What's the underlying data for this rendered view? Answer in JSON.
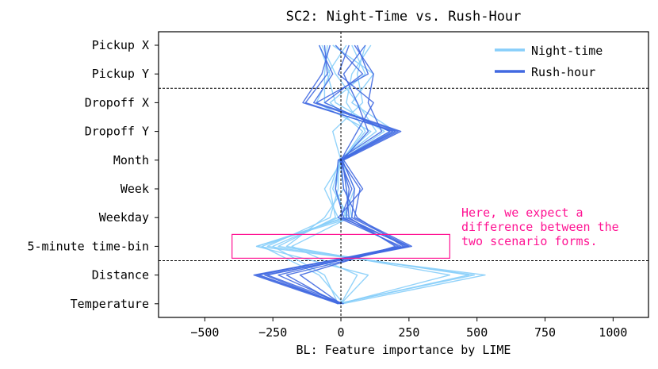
{
  "chart_data": {
    "type": "line",
    "title": "SC2: Night-Time vs. Rush-Hour",
    "xlabel": "BL: Feature importance by LIME",
    "ylabel": "",
    "xlim": [
      -670,
      1130
    ],
    "xticks": [
      -500,
      -250,
      0,
      250,
      500,
      750,
      1000
    ],
    "xtick_labels": [
      "−500",
      "−250",
      "0",
      "250",
      "500",
      "750",
      "1000"
    ],
    "categories": [
      "Pickup X",
      "Pickup Y",
      "Dropoff X",
      "Dropoff Y",
      "Month",
      "Week",
      "Weekday",
      "5-minute time-bin",
      "Distance",
      "Temperature"
    ],
    "grid": false,
    "legend_position": "top-right",
    "dashed_vline_x": 0,
    "dashed_hlines_between": [
      [
        "Pickup Y",
        "Dropoff X"
      ],
      [
        "5-minute time-bin",
        "Distance"
      ]
    ],
    "series": [
      {
        "name": "Night-time",
        "color": "#87cefa",
        "runs": [
          [
            -80,
            -40,
            -90,
            110,
            -5,
            -40,
            -20,
            -230,
            470,
            -10
          ],
          [
            -50,
            -60,
            -60,
            180,
            10,
            20,
            40,
            -310,
            530,
            5
          ],
          [
            90,
            60,
            80,
            -30,
            0,
            -30,
            30,
            -180,
            60,
            0
          ],
          [
            -30,
            120,
            40,
            200,
            -10,
            -10,
            -40,
            -270,
            490,
            -15
          ],
          [
            40,
            90,
            -40,
            80,
            5,
            50,
            10,
            -290,
            -80,
            10
          ],
          [
            -70,
            -20,
            60,
            130,
            -5,
            10,
            -60,
            -200,
            400,
            -5
          ],
          [
            20,
            -50,
            -20,
            160,
            0,
            -20,
            20,
            -310,
            100,
            0
          ],
          [
            110,
            40,
            20,
            90,
            5,
            -60,
            -10,
            -250,
            -60,
            -10
          ]
        ]
      },
      {
        "name": "Rush-hour",
        "color": "#4169e1",
        "runs": [
          [
            -60,
            -50,
            -130,
            190,
            0,
            30,
            20,
            240,
            -320,
            -10
          ],
          [
            -80,
            -30,
            -100,
            210,
            5,
            50,
            40,
            250,
            -310,
            0
          ],
          [
            50,
            120,
            100,
            150,
            -10,
            -20,
            10,
            210,
            -230,
            5
          ],
          [
            -40,
            -70,
            -140,
            200,
            0,
            70,
            50,
            260,
            -280,
            -5
          ],
          [
            90,
            10,
            60,
            100,
            5,
            20,
            30,
            200,
            -150,
            0
          ],
          [
            -20,
            80,
            -60,
            180,
            -5,
            40,
            0,
            250,
            -270,
            10
          ],
          [
            30,
            -10,
            120,
            60,
            0,
            10,
            60,
            230,
            -200,
            -10
          ],
          [
            60,
            100,
            -90,
            220,
            10,
            80,
            -10,
            220,
            -300,
            0
          ]
        ]
      }
    ]
  },
  "legend": {
    "items": [
      {
        "label": "Night-time",
        "color": "#87cefa"
      },
      {
        "label": "Rush-hour",
        "color": "#4169e1"
      }
    ]
  },
  "annotation": {
    "lines": [
      "Here, we expect a",
      "difference between the",
      "two scenario forms."
    ],
    "color": "#ff1493",
    "box_x_range": [
      -400,
      400
    ],
    "box_category": "5-minute time-bin"
  }
}
